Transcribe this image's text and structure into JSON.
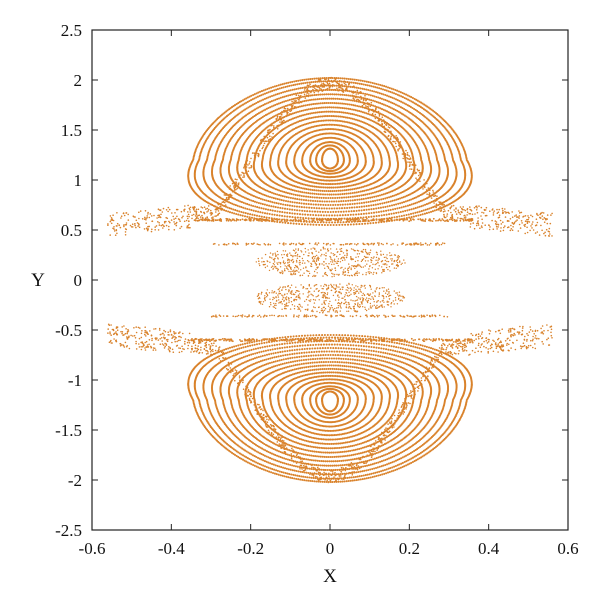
{
  "chart_data": {
    "type": "scatter",
    "title": "",
    "xlabel": "X",
    "ylabel": "Y",
    "xlim": [
      -0.6,
      0.6
    ],
    "ylim": [
      -2.5,
      2.5
    ],
    "xticks": [
      -0.6,
      -0.4,
      -0.2,
      0,
      0.2,
      0.4,
      0.6
    ],
    "xtick_labels": [
      "-0.6",
      "-0.4",
      "-0.2",
      "0",
      "0.2",
      "0.4",
      "0.6"
    ],
    "yticks": [
      -2.5,
      -2,
      -1.5,
      -1,
      -0.5,
      0,
      0.5,
      1,
      1.5,
      2,
      2.5
    ],
    "ytick_labels": [
      "-2.5",
      "-2",
      "-1.5",
      "-1",
      "-0.5",
      "0",
      "0.5",
      "1",
      "1.5",
      "2",
      "2.5"
    ],
    "grid": false,
    "legend": "none",
    "marker_color": "#d9822b",
    "description_of_data": "Poincare-section style scatter: two families of nested closed orbits centered near (0, 1.2) and (0, -1.2), bounded by separatrix curves reaching y≈±2.0 at x=0 and y≈±0.6 at x≈±0.55, with a chaotic scatter band near the separatrices and a diffuse cloud near y≈±0.2.",
    "orbit_centers": [
      [
        0,
        1.2
      ],
      [
        0,
        -1.2
      ]
    ],
    "orbit_families": [
      {
        "center_y": 1.2,
        "half_widths_x": [
          0.02,
          0.035,
          0.05,
          0.07,
          0.09,
          0.11,
          0.13,
          0.15,
          0.17,
          0.19,
          0.21,
          0.23,
          0.25,
          0.27,
          0.29,
          0.31,
          0.33,
          0.345
        ]
      },
      {
        "center_y": -1.2,
        "half_widths_x": [
          0.02,
          0.035,
          0.05,
          0.07,
          0.09,
          0.11,
          0.13,
          0.15,
          0.17,
          0.19,
          0.21,
          0.23,
          0.25,
          0.27,
          0.29,
          0.31,
          0.33,
          0.345
        ]
      }
    ],
    "separatrix_upper": {
      "x": [
        -0.56,
        -0.45,
        -0.35,
        -0.25,
        -0.15,
        -0.05,
        0,
        0.05,
        0.15,
        0.25,
        0.35,
        0.45,
        0.56
      ],
      "y": [
        0.65,
        0.8,
        1.05,
        1.45,
        1.8,
        1.98,
        2.0,
        1.98,
        1.8,
        1.45,
        1.05,
        0.8,
        0.65
      ]
    },
    "separatrix_lower": {
      "x": [
        -0.56,
        -0.45,
        -0.35,
        -0.25,
        -0.15,
        -0.05,
        0,
        0.05,
        0.15,
        0.25,
        0.35,
        0.45,
        0.56
      ],
      "y": [
        -0.65,
        -0.8,
        -1.05,
        -1.45,
        -1.8,
        -1.98,
        -2.0,
        -1.98,
        -1.8,
        -1.45,
        -1.05,
        -0.8,
        -0.65
      ]
    },
    "inner_clouds": [
      {
        "center": [
          0,
          0.18
        ],
        "half_width_x": 0.19,
        "half_height_y": 0.15
      },
      {
        "center": [
          0,
          -0.18
        ],
        "half_width_x": 0.19,
        "half_height_y": 0.15
      }
    ]
  }
}
